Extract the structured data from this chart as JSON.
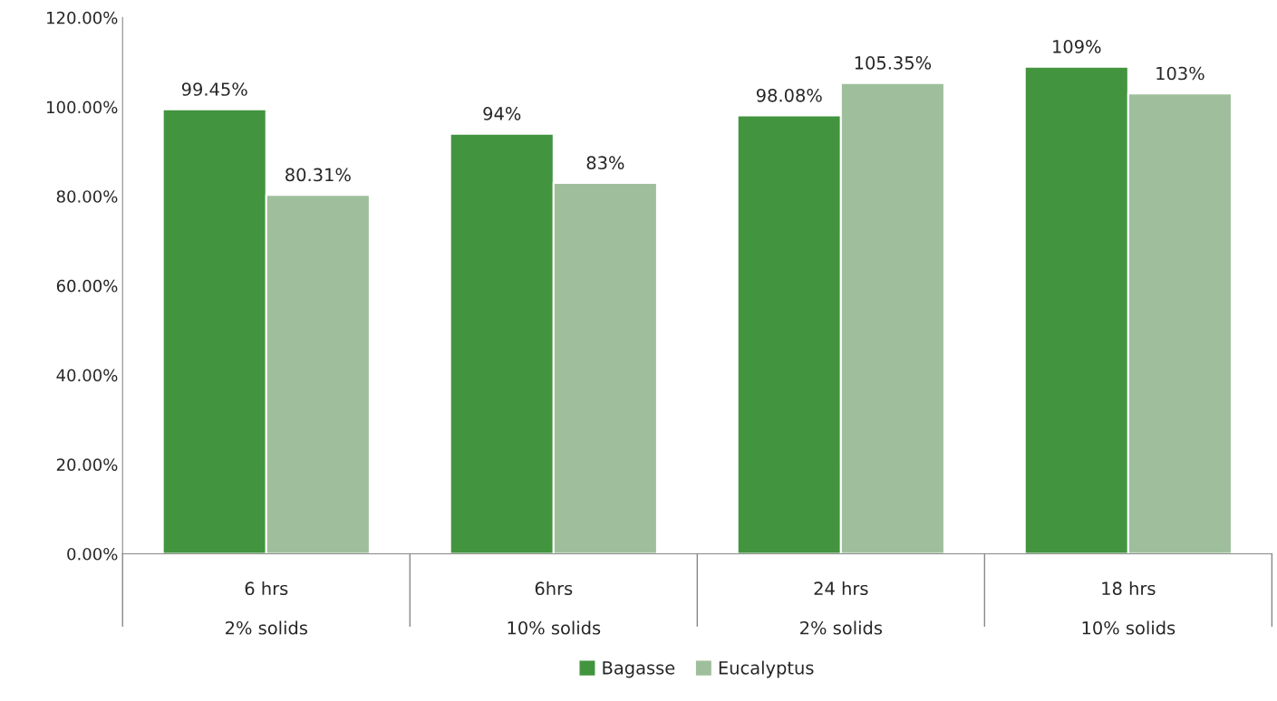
{
  "chart_data": {
    "type": "bar",
    "categories": [
      "6 hrs\n\n2% solids",
      "6hrs\n\n10% solids",
      "24 hrs\n\n2% solids",
      "18 hrs\n\n10% solids"
    ],
    "series": [
      {
        "name": "Bagasse",
        "color": "#43943f",
        "values": [
          99.45,
          94,
          98.08,
          109
        ],
        "value_labels": [
          "99.45%",
          "94%",
          "98.08%",
          "109%"
        ]
      },
      {
        "name": "Eucalyptus",
        "color": "#9fbf9c",
        "values": [
          80.31,
          83,
          105.35,
          103
        ],
        "value_labels": [
          "80.31%",
          "83%",
          "105.35%",
          "103%"
        ]
      }
    ],
    "ylim": [
      0,
      120
    ],
    "yticks": [
      {
        "value": 0,
        "label": "0.00%"
      },
      {
        "value": 20,
        "label": "20.00%"
      },
      {
        "value": 40,
        "label": "40.00%"
      },
      {
        "value": 60,
        "label": "60.00%"
      },
      {
        "value": 80,
        "label": "80.00%"
      },
      {
        "value": 100,
        "label": "100.00%"
      },
      {
        "value": 120,
        "label": "120.00%"
      }
    ],
    "grid": false,
    "legend": "bottom"
  }
}
